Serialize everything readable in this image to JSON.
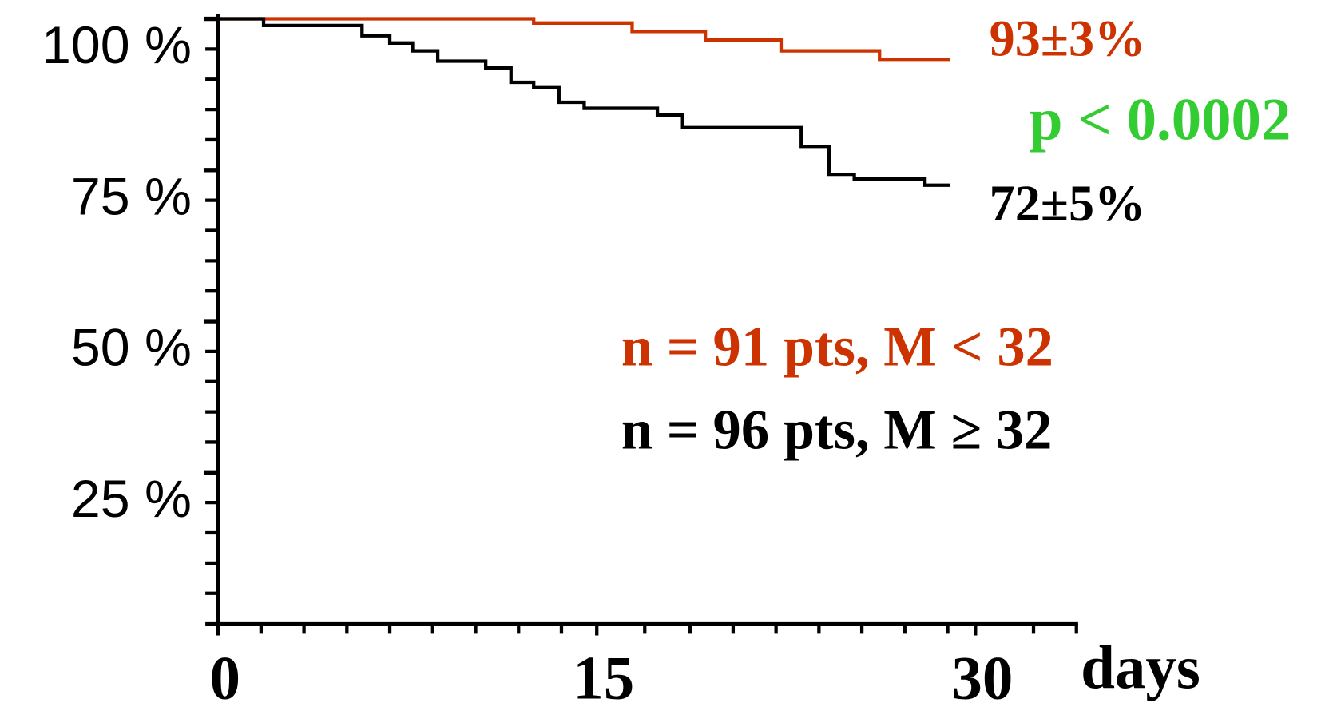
{
  "chart_data": {
    "type": "line",
    "step": "post",
    "x_label": "days",
    "xlim": [
      0,
      34
    ],
    "ylim": [
      0,
      100
    ],
    "xticks": [
      0,
      15,
      30
    ],
    "xminorticks": [
      1.7,
      3.4,
      5.1,
      6.8,
      8.5,
      10.2,
      11.9,
      13.6,
      16.9,
      18.7,
      20.4,
      22.1,
      23.8,
      25.5,
      27.2,
      28.9,
      32.3,
      34
    ],
    "yticks": [
      {
        "value": 25,
        "label": "25 %"
      },
      {
        "value": 50,
        "label": "50 %"
      },
      {
        "value": 75,
        "label": "75 %"
      },
      {
        "value": 100,
        "label": "100 %"
      }
    ],
    "yminorticks": [
      5,
      10,
      15,
      20,
      30,
      35,
      40,
      45,
      55,
      60,
      65,
      70,
      80,
      85,
      90,
      95
    ],
    "series": [
      {
        "name": "n = 91 pts, M < 32",
        "color": "#cc3300",
        "x": [
          0,
          12.5,
          16.4,
          19.3,
          22.3,
          26.2,
          29
        ],
        "values": [
          100,
          99.3,
          97.9,
          96.5,
          94.7,
          93.3,
          93.3
        ]
      },
      {
        "name": "n = 96 pts, M ≥ 32",
        "color": "#000000",
        "x": [
          0,
          1.8,
          5.7,
          6.8,
          7.7,
          8.7,
          10.6,
          11.6,
          12.5,
          13.5,
          14.5,
          17.4,
          18.4,
          23.1,
          24.2,
          25.2,
          28,
          29
        ],
        "values": [
          100,
          98.9,
          97.2,
          96,
          94.7,
          93,
          91.9,
          89.5,
          88.6,
          86.2,
          85.2,
          84.1,
          82,
          78.9,
          74.3,
          73.5,
          72.5,
          72.5
        ]
      }
    ],
    "annotations": [
      {
        "text": "93±3%",
        "color": "#cc3300"
      },
      {
        "text": "p < 0.0002",
        "color": "#33cc33"
      },
      {
        "text": "72±5%",
        "color": "#000000"
      }
    ]
  }
}
